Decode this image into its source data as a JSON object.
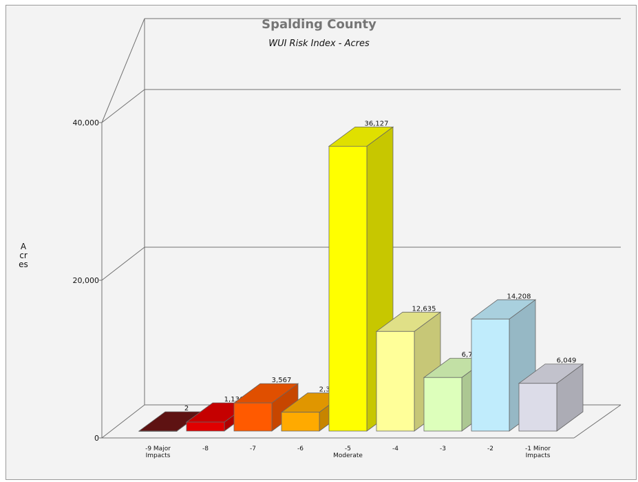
{
  "chart_data": {
    "type": "bar",
    "title": "Spalding County",
    "subtitle": "WUI Risk Index - Acres",
    "ylabel": "Acres",
    "xlabel": "",
    "ylim": [
      0,
      40000
    ],
    "yticks": [
      0,
      20000,
      40000
    ],
    "ytick_labels": [
      "0",
      "20,000",
      "40,000"
    ],
    "grid": true,
    "categories": [
      [
        "-9 Major",
        "Impacts"
      ],
      [
        "-8"
      ],
      [
        "-7"
      ],
      [
        "-6"
      ],
      [
        "-5",
        "Moderate"
      ],
      [
        "-4"
      ],
      [
        "-3"
      ],
      [
        "-2"
      ],
      [
        "-1 Minor",
        "Impacts"
      ]
    ],
    "values": [
      2,
      1136,
      3567,
      2386,
      36127,
      12635,
      6791,
      14208,
      6049
    ],
    "value_labels": [
      "2",
      "1,136",
      "3,567",
      "2,386",
      "36,127",
      "12,635",
      "6,791",
      "14,208",
      "6,049"
    ],
    "colors": [
      "#6b1414",
      "#e00000",
      "#ff5a00",
      "#ffaa00",
      "#ffff00",
      "#ffff99",
      "#ddffbb",
      "#c0ecfc",
      "#dcdce8"
    ]
  }
}
